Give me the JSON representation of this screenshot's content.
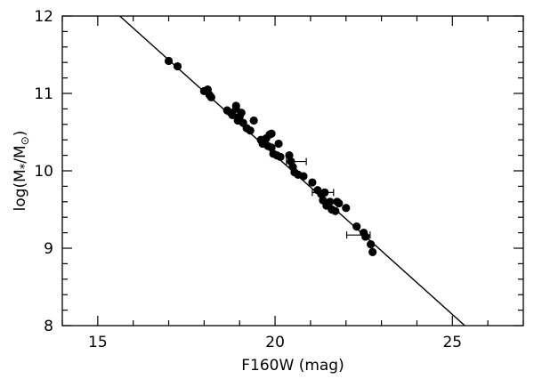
{
  "chart_data": {
    "type": "scatter",
    "title": "",
    "xlabel": "F160W (mag)",
    "ylabel": {
      "prefix": "log(M",
      "sub1": "*",
      "mid": "/M",
      "sub2": "⊙",
      "suffix": ")"
    },
    "xlim": [
      14,
      27
    ],
    "ylim": [
      8,
      12
    ],
    "xticks": [
      15,
      20,
      25
    ],
    "yticks": [
      8,
      9,
      10,
      11,
      12
    ],
    "x_minor_step": 1,
    "y_minor_step": 0.2,
    "grid": false,
    "legend": "none",
    "marker_color": "#000000",
    "line_color": "#000000",
    "fit_line": {
      "x": [
        15.62,
        25.35
      ],
      "y": [
        12.0,
        8.0
      ]
    },
    "points": [
      {
        "x": 17.0,
        "y": 11.42
      },
      {
        "x": 17.25,
        "y": 11.35
      },
      {
        "x": 18.0,
        "y": 11.03
      },
      {
        "x": 18.1,
        "y": 11.05
      },
      {
        "x": 18.15,
        "y": 10.98
      },
      {
        "x": 18.2,
        "y": 10.95
      },
      {
        "x": 18.65,
        "y": 10.78
      },
      {
        "x": 18.75,
        "y": 10.75
      },
      {
        "x": 18.8,
        "y": 10.72
      },
      {
        "x": 18.9,
        "y": 10.84
      },
      {
        "x": 18.9,
        "y": 10.8
      },
      {
        "x": 18.95,
        "y": 10.65
      },
      {
        "x": 19.0,
        "y": 10.7
      },
      {
        "x": 19.05,
        "y": 10.75
      },
      {
        "x": 19.1,
        "y": 10.62
      },
      {
        "x": 19.2,
        "y": 10.55
      },
      {
        "x": 19.3,
        "y": 10.52
      },
      {
        "x": 19.4,
        "y": 10.65
      },
      {
        "x": 19.6,
        "y": 10.4
      },
      {
        "x": 19.65,
        "y": 10.35
      },
      {
        "x": 19.7,
        "y": 10.38
      },
      {
        "x": 19.75,
        "y": 10.42
      },
      {
        "x": 19.8,
        "y": 10.32
      },
      {
        "x": 19.85,
        "y": 10.47
      },
      {
        "x": 19.9,
        "y": 10.3
      },
      {
        "x": 19.9,
        "y": 10.48
      },
      {
        "x": 19.95,
        "y": 10.22
      },
      {
        "x": 20.05,
        "y": 10.2
      },
      {
        "x": 20.1,
        "y": 10.35
      },
      {
        "x": 20.15,
        "y": 10.18
      },
      {
        "x": 20.4,
        "y": 10.2
      },
      {
        "x": 20.45,
        "y": 10.12
      },
      {
        "x": 20.5,
        "y": 10.05
      },
      {
        "x": 20.55,
        "y": 9.98
      },
      {
        "x": 20.65,
        "y": 9.95
      },
      {
        "x": 20.8,
        "y": 9.93
      },
      {
        "x": 21.05,
        "y": 9.85
      },
      {
        "x": 21.2,
        "y": 9.75
      },
      {
        "x": 21.3,
        "y": 9.7
      },
      {
        "x": 21.35,
        "y": 9.62
      },
      {
        "x": 21.4,
        "y": 9.72
      },
      {
        "x": 21.45,
        "y": 9.55
      },
      {
        "x": 21.55,
        "y": 9.6
      },
      {
        "x": 21.6,
        "y": 9.5
      },
      {
        "x": 21.7,
        "y": 9.48
      },
      {
        "x": 21.75,
        "y": 9.6
      },
      {
        "x": 21.8,
        "y": 9.58
      },
      {
        "x": 22.0,
        "y": 9.52
      },
      {
        "x": 22.3,
        "y": 9.28
      },
      {
        "x": 22.5,
        "y": 9.2
      },
      {
        "x": 22.55,
        "y": 9.15
      },
      {
        "x": 22.7,
        "y": 9.05
      },
      {
        "x": 22.75,
        "y": 8.95
      }
    ],
    "error_bars": [
      {
        "x": 20.6,
        "y": 10.12,
        "xerr": 0.28
      },
      {
        "x": 21.35,
        "y": 9.72,
        "xerr": 0.3
      },
      {
        "x": 22.35,
        "y": 9.17,
        "xerr": 0.33
      }
    ]
  }
}
